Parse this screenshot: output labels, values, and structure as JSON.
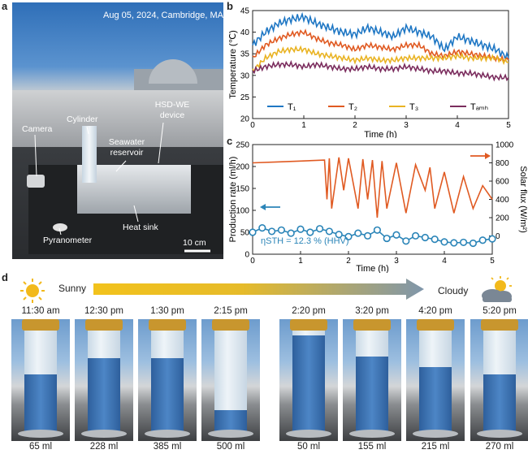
{
  "panel_a": {
    "label": "a",
    "date_location": "Aug 05, 2024, Cambridge, MA",
    "callouts": [
      "Cylinder",
      "HSD-WE device",
      "Camera",
      "Seawater reservoir",
      "Pyranometer",
      "Heat sink"
    ],
    "scale_bar": "10 cm"
  },
  "panel_b": {
    "label": "b",
    "ylabel": "Temperature (℃)",
    "xlabel": "Time (h)",
    "legend": [
      "T₁",
      "T₂",
      "T₃",
      "Tₐₘₕ"
    ],
    "colors": [
      "#1f77c4",
      "#e05a22",
      "#e9b323",
      "#7b2d5e"
    ]
  },
  "panel_c": {
    "label": "c",
    "ylabel_left": "Production rate (ml/h)",
    "ylabel_right": "Solar flux (W/m²)",
    "xlabel": "Time (h)",
    "annotation": "ηSTH  = 12.3 % (HHV)"
  },
  "panel_d": {
    "label": "d",
    "sunny": "Sunny",
    "cloudy": "Cloudy",
    "times": [
      "11:30 am",
      "12:30 pm",
      "1:30 pm",
      "2:15 pm",
      "2:20 pm",
      "3:20 pm",
      "4:20 pm",
      "5:20 pm"
    ],
    "volumes": [
      "65 ml",
      "228 ml",
      "385 ml",
      "500 ml",
      "50 ml",
      "155 ml",
      "215 ml",
      "270 ml"
    ],
    "fill_fraction": [
      0.55,
      0.7,
      0.7,
      0.2,
      0.92,
      0.72,
      0.62,
      0.55
    ]
  },
  "chart_data": [
    {
      "type": "line",
      "title": "",
      "xlabel": "Time (h)",
      "ylabel": "Temperature (℃)",
      "xlim": [
        0,
        5
      ],
      "ylim": [
        20,
        45
      ],
      "xticks": [
        0,
        1,
        2,
        3,
        4,
        5
      ],
      "yticks": [
        20,
        25,
        30,
        35,
        40,
        45
      ],
      "legend_position": "bottom",
      "x": [
        0,
        0.25,
        0.5,
        0.75,
        1.0,
        1.25,
        1.5,
        1.75,
        2.0,
        2.25,
        2.5,
        2.75,
        3.0,
        3.25,
        3.5,
        3.75,
        4.0,
        4.25,
        4.5,
        4.75,
        5.0
      ],
      "series": [
        {
          "name": "T₁",
          "values": [
            37,
            40,
            42,
            43,
            43.5,
            42,
            41,
            40,
            39.5,
            41,
            40,
            39,
            41,
            40,
            39,
            36,
            39,
            38,
            37,
            36,
            34
          ]
        },
        {
          "name": "T₂",
          "values": [
            34,
            37,
            38.5,
            39.5,
            40,
            38.5,
            37.5,
            37,
            36,
            37,
            36.5,
            36,
            37,
            37,
            35,
            34.5,
            35.5,
            35,
            34.5,
            34,
            33.5
          ]
        },
        {
          "name": "T₃",
          "values": [
            31,
            34,
            35.5,
            36,
            36,
            35,
            34.5,
            34,
            33.5,
            34,
            33.5,
            33.5,
            34,
            34,
            34,
            34,
            34.5,
            34,
            34,
            34,
            33
          ]
        },
        {
          "name": "Tₐₘₕ",
          "values": [
            31,
            32,
            32.5,
            32.5,
            32,
            32.5,
            32,
            31.5,
            31.5,
            32,
            31.5,
            31.5,
            32,
            31.5,
            31,
            31,
            30.5,
            30.5,
            30,
            29.5,
            29.5
          ]
        }
      ]
    },
    {
      "type": "line",
      "title": "",
      "xlabel": "Time (h)",
      "ylabel_left": "Production rate (ml/h)",
      "ylabel_right": "Solar flux (W/m²)",
      "xlim": [
        0,
        5
      ],
      "ylim_left": [
        0,
        250
      ],
      "ylim_right": [
        -200,
        1000
      ],
      "xticks": [
        0,
        1,
        2,
        3,
        4,
        5
      ],
      "yticks_left": [
        0,
        50,
        100,
        150,
        200,
        250
      ],
      "yticks_right": [
        0,
        200,
        400,
        600,
        800,
        1000
      ],
      "series": [
        {
          "name": "Solar flux",
          "axis": "right",
          "x": [
            0,
            0.5,
            1.0,
            1.5,
            1.55,
            1.6,
            1.65,
            1.8,
            1.9,
            2.0,
            2.2,
            2.3,
            2.4,
            2.5,
            2.6,
            2.7,
            2.8,
            3.0,
            3.2,
            3.4,
            3.6,
            3.7,
            3.8,
            4.0,
            4.2,
            4.4,
            4.6,
            4.8,
            5.0
          ],
          "values": [
            800,
            810,
            820,
            830,
            400,
            850,
            300,
            860,
            500,
            850,
            300,
            840,
            400,
            830,
            200,
            820,
            300,
            800,
            250,
            780,
            500,
            750,
            300,
            700,
            250,
            650,
            300,
            550,
            400
          ]
        },
        {
          "name": "Production rate",
          "axis": "left",
          "x": [
            0,
            0.2,
            0.4,
            0.6,
            0.8,
            1.0,
            1.2,
            1.4,
            1.6,
            1.8,
            2.0,
            2.2,
            2.4,
            2.6,
            2.8,
            3.0,
            3.2,
            3.4,
            3.6,
            3.8,
            4.0,
            4.2,
            4.4,
            4.6,
            4.8,
            5.0
          ],
          "values": [
            50,
            60,
            52,
            55,
            48,
            57,
            50,
            58,
            52,
            45,
            40,
            48,
            42,
            55,
            36,
            44,
            30,
            42,
            38,
            34,
            28,
            26,
            27,
            25,
            32,
            35
          ]
        }
      ],
      "annotation": "ηSTH  = 12.3 % (HHV)"
    }
  ]
}
